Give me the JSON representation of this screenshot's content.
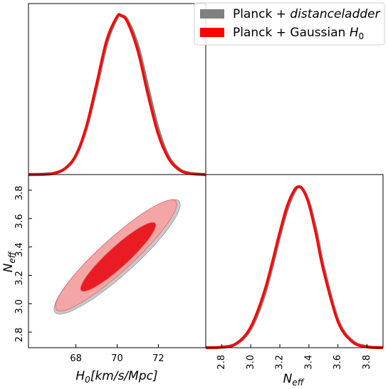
{
  "chart_data": {
    "type": "triangle-corner",
    "colors": {
      "distanceladder": "#808080",
      "gaussian": "#ff0000",
      "gaussian_outer_fill": "#f7a3a3",
      "gaussian_inner_fill": "#e8141c",
      "distanceladder_outer_fill": "#c8c8c8",
      "distanceladder_inner_fill": "#9a9a9a"
    },
    "legend": {
      "placement": "top-right",
      "entries": [
        {
          "id": "distanceladder",
          "prefix": "Planck + ",
          "emph": "distanceladder",
          "sub": ""
        },
        {
          "id": "gaussian",
          "prefix": "Planck + Gaussian ",
          "emph": "H",
          "sub": "0"
        }
      ]
    },
    "params": {
      "H0": {
        "label_main": "H",
        "label_sub": "0",
        "label_units": "[km/s/Mpc]",
        "range": [
          65.7,
          74.3
        ],
        "ticks": [
          68,
          70,
          72
        ]
      },
      "Neff": {
        "label_main": "N",
        "label_sub": "eff",
        "range": [
          2.69,
          3.91
        ],
        "ticks": [
          2.8,
          3.0,
          3.2,
          3.4,
          3.6,
          3.8
        ]
      }
    },
    "marginals": {
      "H0": {
        "x": [
          65.7,
          66.5,
          67.0,
          67.5,
          68.0,
          68.5,
          69.0,
          69.5,
          70.0,
          70.2,
          70.5,
          71.0,
          71.5,
          72.0,
          72.5,
          73.0,
          73.5,
          74.3
        ],
        "series": [
          {
            "name": "Planck + distanceladder",
            "values": [
              0.0,
              0.002,
              0.01,
              0.04,
              0.12,
              0.29,
              0.55,
              0.83,
              0.99,
              1.0,
              0.97,
              0.81,
              0.54,
              0.28,
              0.11,
              0.035,
              0.008,
              0.0
            ]
          },
          {
            "name": "Planck + Gaussian H0",
            "values": [
              0.0,
              0.002,
              0.01,
              0.04,
              0.12,
              0.3,
              0.57,
              0.85,
              0.995,
              1.0,
              0.96,
              0.78,
              0.5,
              0.25,
              0.1,
              0.03,
              0.007,
              0.0
            ]
          }
        ]
      },
      "Neff": {
        "x": [
          2.69,
          2.8,
          2.9,
          3.0,
          3.1,
          3.2,
          3.25,
          3.3,
          3.33,
          3.36,
          3.4,
          3.45,
          3.5,
          3.6,
          3.7,
          3.8,
          3.91
        ],
        "series": [
          {
            "name": "Planck + distanceladder",
            "values": [
              0.0,
              0.003,
              0.025,
              0.12,
              0.35,
              0.7,
              0.86,
              0.97,
              1.0,
              0.98,
              0.9,
              0.72,
              0.5,
              0.17,
              0.04,
              0.006,
              0.0
            ]
          },
          {
            "name": "Planck + Gaussian H0",
            "values": [
              0.0,
              0.003,
              0.025,
              0.13,
              0.37,
              0.72,
              0.88,
              0.98,
              1.0,
              0.98,
              0.89,
              0.7,
              0.48,
              0.16,
              0.035,
              0.005,
              0.0
            ]
          }
        ]
      }
    },
    "contours2d": [
      {
        "name": "Planck + distanceladder",
        "level": "95%",
        "center": [
          70.0,
          3.33
        ],
        "sigma": [
          1.25,
          0.165
        ],
        "corr": 0.91,
        "k": 2.45
      },
      {
        "name": "Planck + distanceladder",
        "level": "68%",
        "center": [
          70.15,
          3.32
        ],
        "sigma": [
          1.25,
          0.165
        ],
        "corr": 0.91,
        "k": 1.52
      },
      {
        "name": "Planck + Gaussian H0",
        "level": "95%",
        "center": [
          69.95,
          3.34
        ],
        "sigma": [
          1.2,
          0.16
        ],
        "corr": 0.92,
        "k": 2.45
      },
      {
        "name": "Planck + Gaussian H0",
        "level": "68%",
        "center": [
          70.05,
          3.33
        ],
        "sigma": [
          1.2,
          0.16
        ],
        "corr": 0.92,
        "k": 1.52
      }
    ],
    "grid": false
  }
}
